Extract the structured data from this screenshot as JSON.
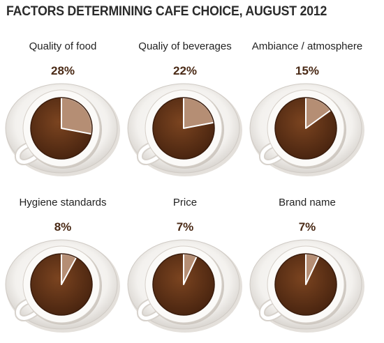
{
  "title": "FACTORS DETERMINING CAFE CHOICE, AUGUST 2012",
  "colors": {
    "coffee_dark": "#4a2510",
    "coffee_mid": "#7b4420",
    "slice_fill": "#b58e74",
    "saucer": "#f3f1ee",
    "percent_text": "#4a2a16"
  },
  "chart_data": {
    "type": "pie",
    "title": "FACTORS DETERMINING CAFE CHOICE, AUGUST 2012",
    "categories": [
      "Quality of food",
      "Qualiy of beverages",
      "Ambiance / atmosphere",
      "Hygiene standards",
      "Price",
      "Brand name"
    ],
    "values": [
      28,
      22,
      15,
      8,
      7,
      7
    ],
    "labels": [
      "28%",
      "22%",
      "15%",
      "8%",
      "7%",
      "7%"
    ],
    "unit": "%"
  }
}
